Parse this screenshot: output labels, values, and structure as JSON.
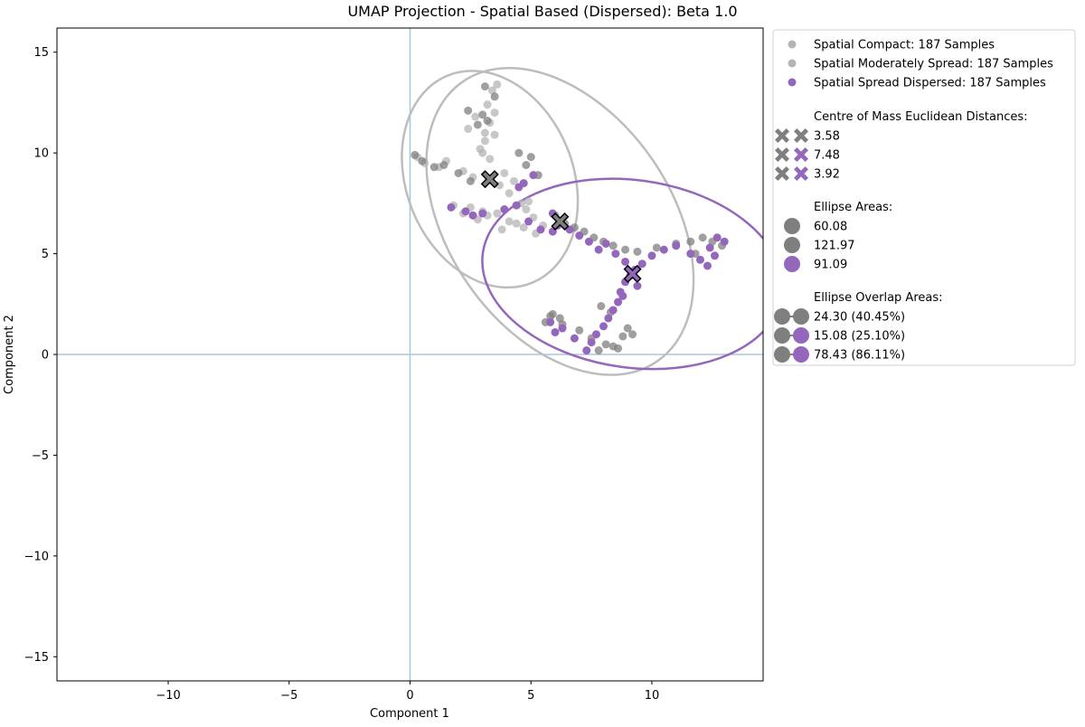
{
  "chart_data": {
    "type": "scatter",
    "title": "UMAP Projection - Spatial Based (Dispersed): Beta 1.0",
    "xlabel": "Component 1",
    "ylabel": "Component 2",
    "xlim": [
      -14.6,
      14.6
    ],
    "ylim": [
      -16.2,
      16.2
    ],
    "xticks": [
      -10,
      -5,
      0,
      5,
      10
    ],
    "yticks": [
      -15,
      -10,
      -5,
      0,
      5,
      10,
      15
    ],
    "grid": false,
    "reference_lines": {
      "x": 0,
      "y": 0,
      "color": "#a6c8dc"
    },
    "legend_placement": "outside-right",
    "colors": {
      "compact": "#b4b4b4",
      "moderate": "#7f7f7f",
      "dispersed": "#9467bd",
      "ellipse_gray": "#bdbdbd",
      "ellipse_purple": "#9467bd"
    },
    "series": [
      {
        "name": "Spatial Compact: 187 Samples",
        "color": "#b4b4b4",
        "centroid": [
          3.3,
          8.7
        ],
        "ellipse": {
          "center": [
            3.3,
            8.7
          ],
          "width": 6.9,
          "height": 11.1,
          "angle_deg": 22
        },
        "x": [
          0.3,
          0.6,
          1.2,
          1.5,
          2.2,
          2.6,
          2.9,
          3.1,
          3.3,
          3.5,
          3.2,
          3.4,
          3.6,
          3.1,
          3.5,
          2.7,
          2.4,
          3.0,
          3.3,
          3.7,
          4.1,
          4.6,
          4.8,
          5.1,
          4.4,
          3.8,
          3.2,
          3.0,
          2.5,
          2.8,
          3.6,
          4.1,
          4.7,
          5.2,
          5.5,
          4.9,
          4.3,
          3.9,
          2.2,
          1.8
        ],
        "y": [
          9.8,
          9.5,
          9.3,
          9.6,
          9.1,
          8.8,
          10.2,
          11.0,
          11.5,
          12.0,
          12.4,
          13.1,
          13.4,
          10.6,
          10.9,
          11.8,
          11.2,
          10.0,
          9.7,
          8.4,
          8.0,
          7.5,
          7.2,
          6.8,
          6.5,
          6.2,
          6.9,
          7.1,
          7.3,
          6.7,
          7.0,
          6.6,
          6.3,
          6.0,
          6.4,
          7.6,
          8.6,
          9.0,
          7.0,
          7.4
        ]
      },
      {
        "name": "Spatial Moderately Spread: 187 Samples",
        "color": "#7f7f7f",
        "centroid": [
          6.2,
          6.6
        ],
        "ellipse": {
          "center": [
            6.2,
            6.6
          ],
          "width": 9.2,
          "height": 16.9,
          "angle_deg": 35
        },
        "x": [
          0.2,
          0.5,
          1.0,
          1.4,
          2.0,
          2.5,
          3.0,
          2.4,
          2.8,
          3.2,
          3.5,
          3.1,
          4.5,
          5.0,
          4.8,
          5.3,
          6.0,
          6.4,
          6.8,
          7.2,
          7.6,
          8.0,
          8.4,
          8.9,
          9.4,
          10.2,
          11.0,
          11.6,
          12.1,
          12.5,
          12.9,
          11.8,
          5.8,
          6.3,
          7.0,
          7.5,
          8.1,
          8.6,
          8.8,
          9.0,
          9.2,
          8.4,
          7.8,
          6.2,
          5.6,
          5.9,
          7.9,
          8.3
        ],
        "y": [
          9.9,
          9.6,
          9.3,
          9.4,
          9.0,
          8.6,
          11.9,
          12.1,
          11.4,
          11.6,
          12.8,
          13.3,
          10.0,
          9.8,
          9.4,
          8.9,
          6.9,
          6.5,
          6.3,
          6.1,
          5.8,
          5.6,
          5.4,
          5.2,
          5.1,
          5.3,
          5.5,
          5.6,
          5.8,
          5.6,
          5.4,
          5.0,
          1.9,
          1.5,
          1.2,
          0.8,
          0.5,
          0.3,
          0.9,
          1.3,
          1.0,
          0.4,
          0.2,
          1.8,
          1.6,
          2.0,
          2.4,
          2.1
        ]
      },
      {
        "name": "Spatial Spread Dispersed: 187 Samples",
        "color": "#9467bd",
        "centroid": [
          9.2,
          4.0
        ],
        "ellipse": {
          "center": [
            9.2,
            4.0
          ],
          "width": 12.5,
          "height": 9.3,
          "angle_deg": -8
        },
        "x": [
          1.7,
          2.3,
          2.6,
          3.0,
          3.9,
          4.4,
          4.9,
          5.4,
          5.9,
          6.1,
          6.6,
          7.0,
          7.4,
          7.8,
          8.1,
          8.5,
          8.9,
          9.3,
          9.6,
          10.0,
          10.5,
          11.0,
          11.6,
          12.0,
          12.4,
          12.7,
          13.0,
          12.3,
          12.6,
          8.9,
          8.7,
          8.6,
          8.4,
          8.2,
          8.0,
          7.7,
          7.5,
          7.3,
          6.8,
          6.3,
          5.8,
          6.0,
          9.1,
          9.4,
          8.8,
          4.7,
          5.1,
          4.5,
          5.9
        ],
        "y": [
          7.3,
          7.1,
          6.9,
          7.0,
          7.2,
          7.4,
          6.6,
          6.2,
          6.1,
          6.4,
          6.2,
          5.9,
          5.6,
          5.2,
          5.5,
          5.0,
          4.6,
          4.2,
          4.5,
          4.9,
          5.2,
          5.4,
          5.0,
          4.7,
          5.3,
          5.8,
          5.6,
          4.4,
          4.9,
          3.6,
          3.1,
          2.6,
          2.2,
          1.8,
          1.4,
          1.0,
          0.6,
          0.2,
          0.8,
          1.3,
          1.6,
          1.1,
          3.9,
          3.4,
          2.9,
          8.5,
          8.9,
          8.3,
          7.0
        ]
      }
    ],
    "legend": {
      "series_labels": [
        "Spatial Compact: 187 Samples",
        "Spatial Moderately Spread: 187 Samples",
        "Spatial Spread Dispersed: 187 Samples"
      ],
      "distances_title": "Centre of Mass Euclidean Distances:",
      "distances": [
        {
          "value": "3.58",
          "colors": [
            "#7f7f7f",
            "#7f7f7f"
          ]
        },
        {
          "value": "7.48",
          "colors": [
            "#7f7f7f",
            "#9467bd"
          ]
        },
        {
          "value": "3.92",
          "colors": [
            "#7f7f7f",
            "#9467bd"
          ]
        }
      ],
      "areas_title": "Ellipse Areas:",
      "areas": [
        {
          "value": "60.08",
          "color": "#7f7f7f"
        },
        {
          "value": "121.97",
          "color": "#7f7f7f"
        },
        {
          "value": "91.09",
          "color": "#9467bd"
        }
      ],
      "overlaps_title": "Ellipse Overlap Areas:",
      "overlaps": [
        {
          "value": "24.30 (40.45%)",
          "colors": [
            "#7f7f7f",
            "#7f7f7f"
          ]
        },
        {
          "value": "15.08 (25.10%)",
          "colors": [
            "#7f7f7f",
            "#9467bd"
          ]
        },
        {
          "value": "78.43 (86.11%)",
          "colors": [
            "#7f7f7f",
            "#9467bd"
          ]
        }
      ]
    }
  }
}
